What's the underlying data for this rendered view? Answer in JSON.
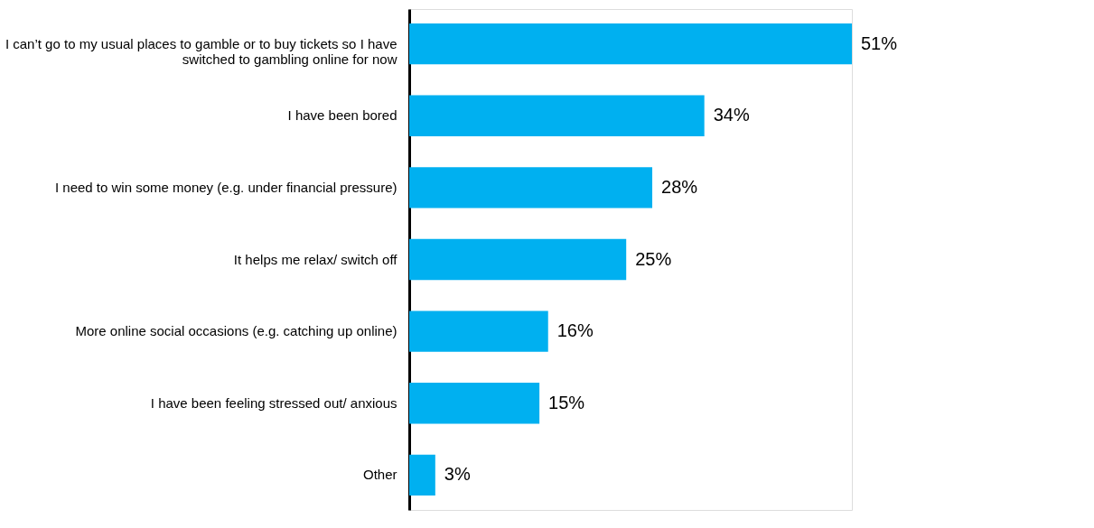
{
  "chart_data": {
    "type": "bar",
    "orientation": "horizontal",
    "categories": [
      "I can’t go to my usual places to gamble or to buy tickets so I have switched to gambling online for now",
      "I have been bored",
      "I need to win some money (e.g. under financial pressure)",
      "It helps me relax/ switch off",
      "More online social occasions (e.g. catching up online)",
      "I have been feeling stressed out/ anxious",
      "Other"
    ],
    "values": [
      51,
      34,
      28,
      25,
      16,
      15,
      3
    ],
    "value_labels": [
      "51%",
      "34%",
      "28%",
      "25%",
      "16%",
      "15%",
      "3%"
    ],
    "color": "#00b0f0",
    "xlim": [
      0,
      51
    ],
    "tick_labels": "y"
  }
}
